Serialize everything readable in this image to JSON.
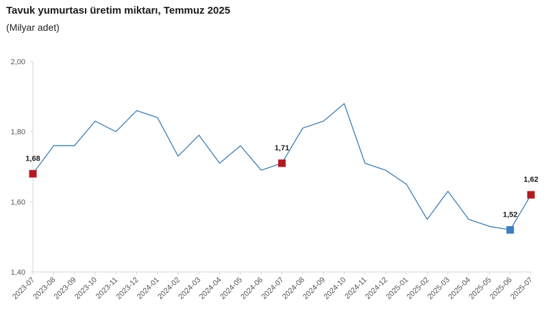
{
  "header": {
    "title": "Tavuk yumurtası üretim miktarı, Temmuz 2025",
    "subtitle": "(Milyar adet)"
  },
  "chart_data": {
    "type": "line",
    "title": "Tavuk yumurtası üretim miktarı, Temmuz 2025",
    "subtitle": "(Milyar adet)",
    "xlabel": "",
    "ylabel": "",
    "ylim": [
      1.4,
      2.0
    ],
    "yticks": [
      1.4,
      1.6,
      1.8,
      2.0
    ],
    "ytick_labels": [
      "1,40",
      "1,60",
      "1,80",
      "2,00"
    ],
    "grid": false,
    "categories": [
      "2023-07",
      "2023-08",
      "2023-09",
      "2023-10",
      "2023-11",
      "2023-12",
      "2024-01",
      "2024-02",
      "2024-03",
      "2024-04",
      "2024-05",
      "2024-06",
      "2024-07",
      "2024-08",
      "2024-09",
      "2024-10",
      "2024-11",
      "2024-12",
      "2025-01",
      "2025-02",
      "2025-03",
      "2025-04",
      "2025-05",
      "2025-06",
      "2025-07"
    ],
    "series": [
      {
        "values": [
          1.68,
          1.76,
          1.76,
          1.83,
          1.8,
          1.86,
          1.84,
          1.73,
          1.79,
          1.71,
          1.76,
          1.69,
          1.71,
          1.81,
          1.83,
          1.88,
          1.71,
          1.69,
          1.65,
          1.55,
          1.63,
          1.55,
          1.53,
          1.52,
          1.62
        ],
        "color": "#3a7cb4"
      }
    ],
    "highlights": [
      {
        "category": "2023-07",
        "value": 1.68,
        "label": "1,68",
        "color": "#b01c22"
      },
      {
        "category": "2024-07",
        "value": 1.71,
        "label": "1,71",
        "color": "#b01c22"
      },
      {
        "category": "2025-06",
        "value": 1.52,
        "label": "1,52",
        "color": "#3a80c0"
      },
      {
        "category": "2025-07",
        "value": 1.62,
        "label": "1,62",
        "color": "#b01c22"
      }
    ]
  }
}
